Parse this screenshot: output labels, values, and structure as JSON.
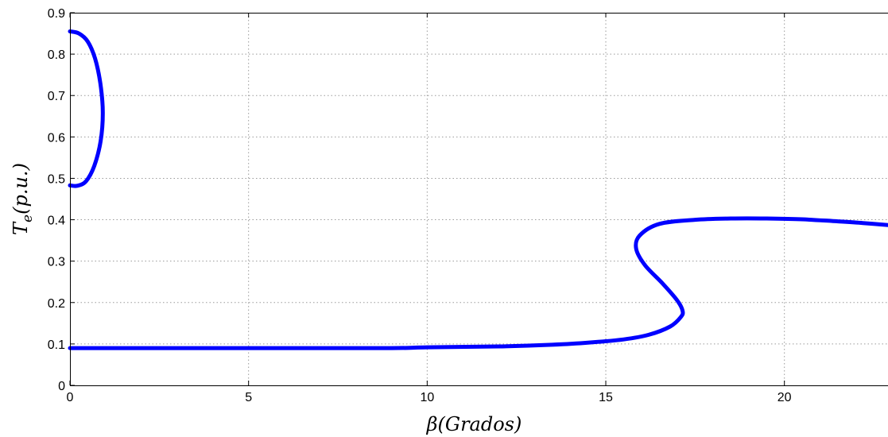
{
  "chart_data": {
    "type": "line",
    "title": "",
    "xlabel": "β(Grados)",
    "ylabel": "T_e(p.u.)",
    "ylabel_main": "T",
    "ylabel_sub": "e",
    "ylabel_rest": "(p.u.)",
    "xlim": [
      0,
      22.9
    ],
    "ylim": [
      0,
      0.9
    ],
    "x_ticks": [
      0,
      5,
      10,
      15,
      20
    ],
    "y_ticks": [
      0,
      0.1,
      0.2,
      0.3,
      0.4,
      0.5,
      0.6,
      0.7,
      0.8,
      0.9
    ],
    "x_tick_labels": [
      "0",
      "5",
      "10",
      "15",
      "20"
    ],
    "y_tick_labels": [
      "0",
      "0.1",
      "0.2",
      "0.3",
      "0.4",
      "0.5",
      "0.6",
      "0.7",
      "0.8",
      "0.9"
    ],
    "grid": true,
    "legend": false,
    "color": "#0000ff",
    "series": [
      {
        "points": [
          [
            0.0,
            0.855
          ],
          [
            0.25,
            0.85
          ],
          [
            0.5,
            0.83
          ],
          [
            0.7,
            0.79
          ],
          [
            0.85,
            0.73
          ],
          [
            0.92,
            0.66
          ],
          [
            0.86,
            0.59
          ],
          [
            0.68,
            0.53
          ],
          [
            0.45,
            0.493
          ],
          [
            0.2,
            0.482
          ],
          [
            0.0,
            0.483
          ]
        ]
      },
      {
        "points": [
          [
            0.0,
            0.09
          ],
          [
            5.0,
            0.09
          ],
          [
            9.0,
            0.09
          ],
          [
            10.0,
            0.092
          ],
          [
            12.0,
            0.094
          ],
          [
            13.5,
            0.098
          ],
          [
            14.5,
            0.103
          ],
          [
            15.5,
            0.111
          ],
          [
            16.2,
            0.122
          ],
          [
            16.8,
            0.142
          ],
          [
            17.1,
            0.165
          ],
          [
            17.15,
            0.18
          ],
          [
            17.0,
            0.205
          ],
          [
            16.6,
            0.245
          ],
          [
            16.1,
            0.29
          ],
          [
            15.85,
            0.33
          ],
          [
            15.95,
            0.362
          ],
          [
            16.5,
            0.39
          ],
          [
            17.5,
            0.4
          ],
          [
            18.5,
            0.403
          ],
          [
            19.5,
            0.403
          ],
          [
            20.5,
            0.401
          ],
          [
            21.5,
            0.396
          ],
          [
            22.2,
            0.392
          ],
          [
            22.9,
            0.387
          ]
        ]
      }
    ]
  }
}
